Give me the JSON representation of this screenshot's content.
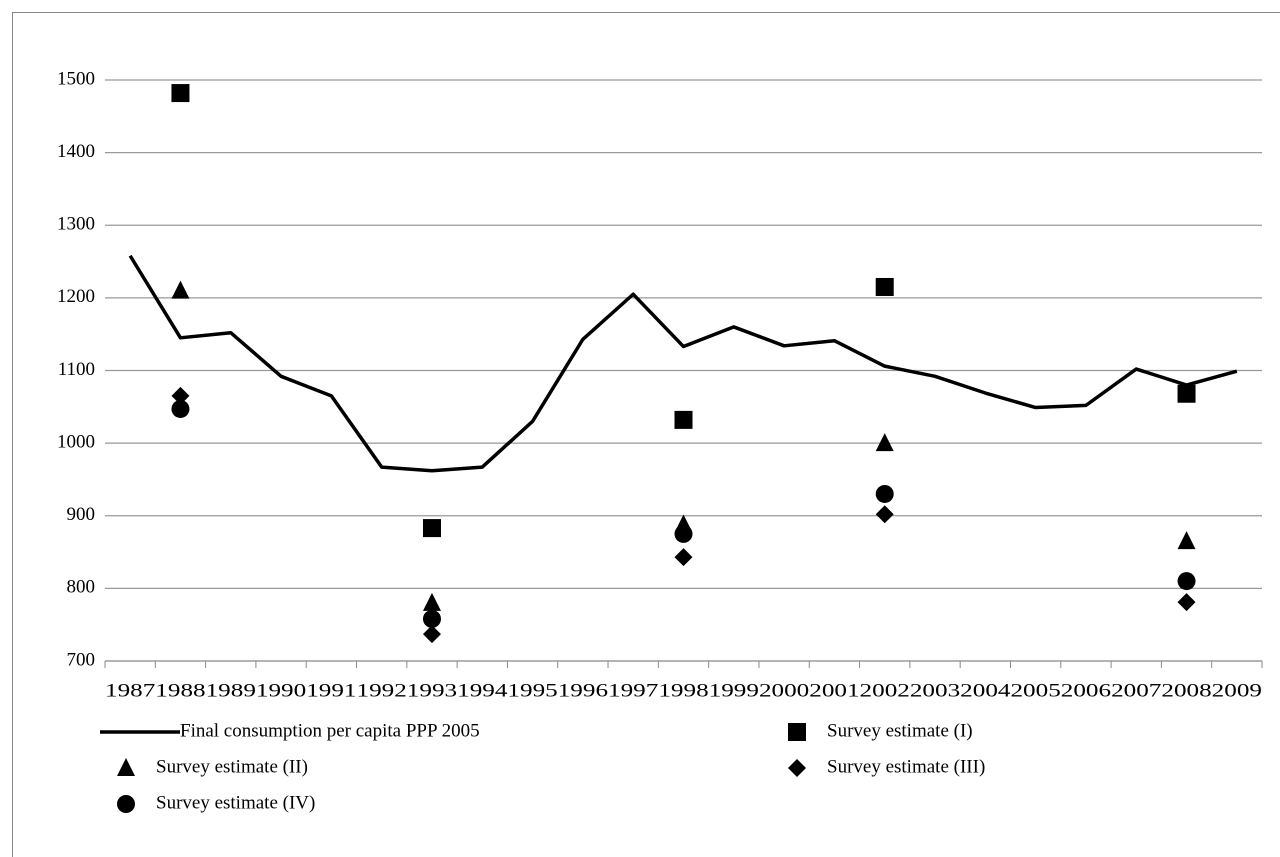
{
  "chart_data": {
    "type": "line",
    "categories": [
      "1987",
      "1988",
      "1989",
      "1990",
      "1991",
      "1992",
      "1993",
      "1994",
      "1995",
      "1996",
      "1997",
      "1998",
      "1999",
      "2000",
      "2001",
      "2002",
      "2003",
      "2004",
      "2005",
      "2006",
      "2007",
      "2008",
      "2009"
    ],
    "series": [
      {
        "name": "Final consumption per capita PPP 2005",
        "color": "#000000",
        "marker": "line",
        "values": [
          1258,
          1145,
          1152,
          1092,
          1065,
          967,
          962,
          967,
          1030,
          1143,
          1205,
          1133,
          1160,
          1134,
          1141,
          1106,
          1092,
          1069,
          1049,
          1052,
          1102,
          1080,
          1099
        ]
      },
      {
        "name": "Survey estimate (I)",
        "color": "#000000",
        "marker": "square",
        "values": [
          null,
          1482,
          null,
          null,
          null,
          null,
          883,
          null,
          null,
          null,
          null,
          1032,
          null,
          null,
          null,
          1215,
          null,
          null,
          null,
          null,
          null,
          1068,
          null
        ]
      },
      {
        "name": "Survey estimate (II)",
        "color": "#000000",
        "marker": "triangle",
        "values": [
          null,
          1210,
          null,
          null,
          null,
          null,
          780,
          null,
          null,
          null,
          null,
          888,
          null,
          null,
          null,
          1000,
          null,
          null,
          null,
          null,
          null,
          865,
          null
        ]
      },
      {
        "name": "Survey estimate (III)",
        "color": "#000000",
        "marker": "diamond",
        "values": [
          null,
          1065,
          null,
          null,
          null,
          null,
          737,
          null,
          null,
          null,
          null,
          843,
          null,
          null,
          null,
          902,
          null,
          null,
          null,
          null,
          null,
          781,
          null
        ]
      },
      {
        "name": "Survey estimate (IV)",
        "color": "#000000",
        "marker": "circle",
        "values": [
          null,
          1047,
          null,
          null,
          null,
          null,
          758,
          null,
          null,
          null,
          null,
          875,
          null,
          null,
          null,
          930,
          null,
          null,
          null,
          null,
          null,
          810,
          null
        ]
      }
    ],
    "ylim": [
      700,
      1500
    ],
    "yticks": [
      700,
      800,
      900,
      1000,
      1100,
      1200,
      1300,
      1400,
      1500
    ],
    "grid": true,
    "legend": "bottom"
  }
}
